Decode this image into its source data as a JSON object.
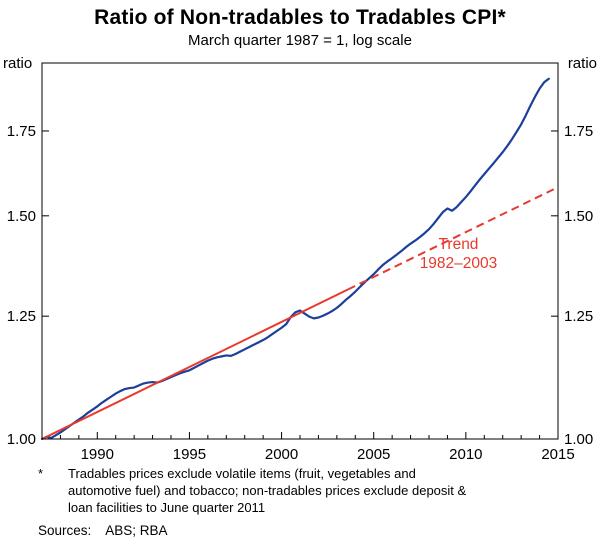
{
  "header": {
    "title": "Ratio of Non-tradables to Tradables CPI*",
    "subtitle": "March quarter 1987 = 1, log scale"
  },
  "chart_data": {
    "type": "line",
    "title": "Ratio of Non-tradables to Tradables CPI*",
    "subtitle": "March quarter 1987 = 1, log scale",
    "log_scale": true,
    "grid": false,
    "axis_unit_label": "ratio",
    "xlim": [
      1987,
      2015
    ],
    "ylim": [
      1.0,
      1.98
    ],
    "x_minor_step": 1,
    "x_ticks": [
      {
        "value": 1990,
        "label": "1990"
      },
      {
        "value": 1995,
        "label": "1995"
      },
      {
        "value": 2000,
        "label": "2000"
      },
      {
        "value": 2005,
        "label": "2005"
      },
      {
        "value": 2010,
        "label": "2010"
      },
      {
        "value": 2015,
        "label": "2015"
      }
    ],
    "y_ticks": [
      {
        "value": 1.0,
        "label": "1.00"
      },
      {
        "value": 1.25,
        "label": "1.25"
      },
      {
        "value": 1.5,
        "label": "1.50"
      },
      {
        "value": 1.75,
        "label": "1.75"
      }
    ],
    "series": [
      {
        "name": "Ratio of non-tradables to tradables CPI",
        "color": "#1c3f9b",
        "width": 2.2,
        "x_start": 1987.0,
        "x_step": 0.25,
        "values": [
          1.0,
          1.004,
          1.002,
          1.007,
          1.012,
          1.018,
          1.024,
          1.03,
          1.036,
          1.042,
          1.049,
          1.055,
          1.061,
          1.068,
          1.074,
          1.08,
          1.086,
          1.091,
          1.095,
          1.097,
          1.098,
          1.102,
          1.106,
          1.108,
          1.109,
          1.108,
          1.111,
          1.115,
          1.119,
          1.123,
          1.127,
          1.13,
          1.133,
          1.138,
          1.143,
          1.148,
          1.153,
          1.157,
          1.16,
          1.162,
          1.164,
          1.163,
          1.167,
          1.172,
          1.177,
          1.182,
          1.187,
          1.192,
          1.197,
          1.203,
          1.21,
          1.217,
          1.224,
          1.232,
          1.248,
          1.259,
          1.263,
          1.256,
          1.249,
          1.245,
          1.247,
          1.251,
          1.256,
          1.262,
          1.269,
          1.278,
          1.288,
          1.297,
          1.307,
          1.318,
          1.329,
          1.339,
          1.349,
          1.361,
          1.372,
          1.381,
          1.389,
          1.398,
          1.407,
          1.417,
          1.426,
          1.434,
          1.443,
          1.453,
          1.464,
          1.478,
          1.494,
          1.51,
          1.52,
          1.514,
          1.524,
          1.538,
          1.552,
          1.568,
          1.585,
          1.602,
          1.618,
          1.634,
          1.65,
          1.667,
          1.684,
          1.703,
          1.724,
          1.747,
          1.771,
          1.8,
          1.832,
          1.862,
          1.89,
          1.912,
          1.924
        ]
      }
    ],
    "trend": {
      "name": "Trend 1982–2003",
      "color": "#e8392d",
      "width": 2,
      "solid": [
        [
          1987.0,
          1.0
        ],
        [
          2003.6,
          1.312
        ]
      ],
      "dashed": [
        [
          2003.6,
          1.312
        ],
        [
          2015.0,
          1.58
        ]
      ]
    },
    "annotation": {
      "lines": [
        "Trend",
        "1982–2003"
      ],
      "x": 2009.6,
      "y": 1.412,
      "color": "#e8392d"
    }
  },
  "footnote": {
    "marker": "*",
    "text": "Tradables prices exclude volatile items (fruit, vegetables and automotive fuel) and tobacco; non-tradables prices exclude deposit & loan facilities to June quarter 2011"
  },
  "sources": {
    "label": "Sources:",
    "text": "ABS; RBA"
  }
}
